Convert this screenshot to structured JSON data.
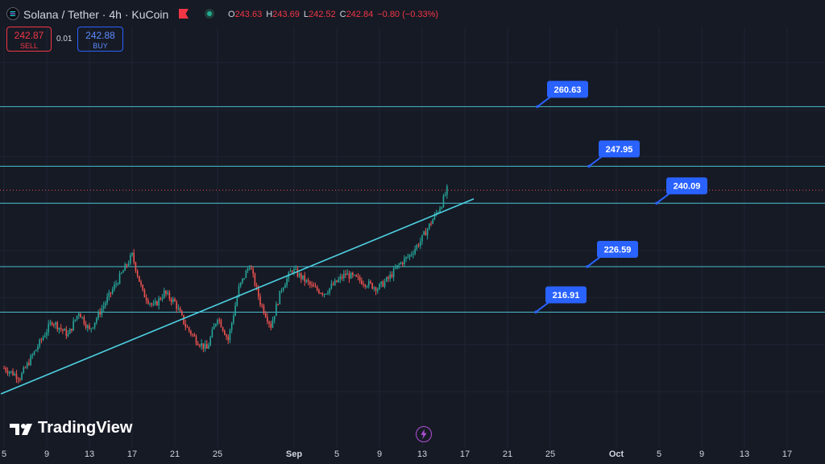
{
  "header": {
    "title": "Solana / Tether · 4h · KuCoin",
    "ohlc": [
      {
        "k": "O",
        "v": "243.63"
      },
      {
        "k": "H",
        "v": "243.69"
      },
      {
        "k": "L",
        "v": "242.52"
      },
      {
        "k": "C",
        "v": "242.84"
      }
    ],
    "change": "−0.80 (−0.33%)"
  },
  "trade": {
    "sell_price": "242.87",
    "sell_label": "SELL",
    "spread": "0.01",
    "buy_price": "242.88",
    "buy_label": "BUY"
  },
  "branding": {
    "logo_text": "TradingView"
  },
  "colors": {
    "background": "#161a25",
    "up": "#26a69a",
    "down": "#ef5350",
    "level_line": "#4dd0e1",
    "callout": "#2962ff",
    "sell": "#f23645",
    "buy": "#2962ff"
  },
  "chart_data": {
    "type": "candlestick",
    "symbol": "Solana / Tether",
    "interval": "4h",
    "exchange": "KuCoin",
    "x_tick_labels": [
      "5",
      "9",
      "13",
      "17",
      "21",
      "25",
      "Sep",
      "5",
      "9",
      "13",
      "17",
      "21",
      "25",
      "Oct",
      "5",
      "9",
      "13",
      "17"
    ],
    "price_path": [
      [
        0,
        205
      ],
      [
        1.5,
        203
      ],
      [
        3,
        209
      ],
      [
        4.5,
        215
      ],
      [
        6,
        212
      ],
      [
        7,
        217
      ],
      [
        8,
        213
      ],
      [
        9.5,
        219
      ],
      [
        11,
        225
      ],
      [
        12,
        229
      ],
      [
        13,
        221
      ],
      [
        14,
        218
      ],
      [
        15,
        221
      ],
      [
        16,
        219
      ],
      [
        17,
        214
      ],
      [
        18,
        211
      ],
      [
        19,
        209
      ],
      [
        20,
        216
      ],
      [
        21,
        211
      ],
      [
        22,
        222
      ],
      [
        23,
        227
      ],
      [
        24,
        219
      ],
      [
        25,
        214
      ],
      [
        26,
        222
      ],
      [
        27,
        226
      ],
      [
        28,
        224
      ],
      [
        29,
        222
      ],
      [
        30,
        221
      ],
      [
        31,
        223
      ],
      [
        32,
        225
      ],
      [
        33,
        224
      ],
      [
        34,
        223
      ],
      [
        35,
        222
      ],
      [
        36,
        224
      ],
      [
        37,
        227
      ],
      [
        38,
        229
      ],
      [
        39,
        232
      ],
      [
        40,
        236
      ],
      [
        41,
        240
      ],
      [
        41.5,
        242.9
      ]
    ],
    "trendline": [
      [
        -0.3,
        199.5
      ],
      [
        44,
        241
      ]
    ],
    "horizontal_levels": [
      {
        "value": 260.63,
        "label": "260.63"
      },
      {
        "value": 247.95,
        "label": "247.95"
      },
      {
        "value": 240.09,
        "label": "240.09"
      },
      {
        "value": 226.59,
        "label": "226.59"
      },
      {
        "value": 216.91,
        "label": "216.91"
      }
    ],
    "last_price": 242.84,
    "ylim": [
      193.5,
      277.5
    ],
    "grid": true
  }
}
